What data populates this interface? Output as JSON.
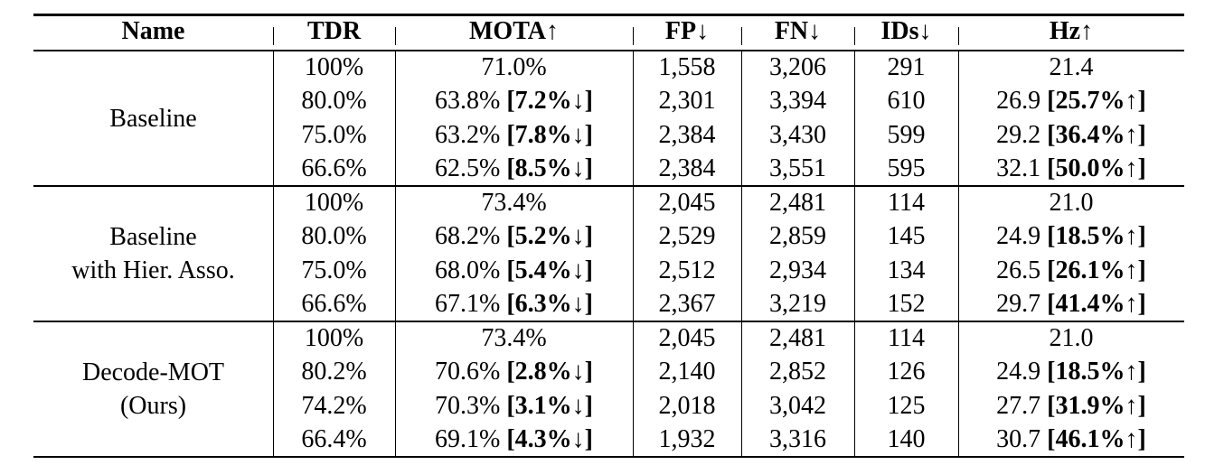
{
  "table": {
    "header": [
      "Name",
      "TDR",
      "MOTA↑",
      "FP↓",
      "FN↓",
      "IDs↓",
      "Hz↑"
    ],
    "groups": [
      {
        "name": [
          "Baseline"
        ],
        "rows": [
          [
            "100%",
            {
              "text": "71.0%"
            },
            "1,558",
            "3,206",
            "291",
            {
              "text": "21.4"
            }
          ],
          [
            "80.0%",
            {
              "text": "63.8%",
              "delta": "[7.2%↓]"
            },
            "2,301",
            "3,394",
            "610",
            {
              "text": "26.9",
              "delta": "[25.7%↑]"
            }
          ],
          [
            "75.0%",
            {
              "text": "63.2%",
              "delta": "[7.8%↓]"
            },
            "2,384",
            "3,430",
            "599",
            {
              "text": "29.2",
              "delta": "[36.4%↑]"
            }
          ],
          [
            "66.6%",
            {
              "text": "62.5%",
              "delta": "[8.5%↓]"
            },
            "2,384",
            "3,551",
            "595",
            {
              "text": "32.1",
              "delta": "[50.0%↑]"
            }
          ]
        ]
      },
      {
        "name": [
          "Baseline",
          "with Hier. Asso."
        ],
        "rows": [
          [
            "100%",
            {
              "text": "73.4%"
            },
            "2,045",
            "2,481",
            "114",
            {
              "text": "21.0"
            }
          ],
          [
            "80.0%",
            {
              "text": "68.2%",
              "delta": "[5.2%↓]"
            },
            "2,529",
            "2,859",
            "145",
            {
              "text": "24.9",
              "delta": "[18.5%↑]"
            }
          ],
          [
            "75.0%",
            {
              "text": "68.0%",
              "delta": "[5.4%↓]"
            },
            "2,512",
            "2,934",
            "134",
            {
              "text": "26.5",
              "delta": "[26.1%↑]"
            }
          ],
          [
            "66.6%",
            {
              "text": "67.1%",
              "delta": "[6.3%↓]"
            },
            "2,367",
            "3,219",
            "152",
            {
              "text": "29.7",
              "delta": "[41.4%↑]"
            }
          ]
        ]
      },
      {
        "name": [
          "Decode-MOT",
          "(Ours)"
        ],
        "rows": [
          [
            "100%",
            {
              "text": "73.4%"
            },
            "2,045",
            "2,481",
            "114",
            {
              "text": "21.0"
            }
          ],
          [
            "80.2%",
            {
              "text": "70.6%",
              "delta": "[2.8%↓]"
            },
            "2,140",
            "2,852",
            "126",
            {
              "text": "24.9",
              "delta": "[18.5%↑]"
            }
          ],
          [
            "74.2%",
            {
              "text": "70.3%",
              "delta": "[3.1%↓]"
            },
            "2,018",
            "3,042",
            "125",
            {
              "text": "27.7",
              "delta": "[31.9%↑]"
            }
          ],
          [
            "66.4%",
            {
              "text": "69.1%",
              "delta": "[4.3%↓]"
            },
            "1,932",
            "3,316",
            "140",
            {
              "text": "30.7",
              "delta": "[46.1%↑]"
            }
          ]
        ]
      }
    ]
  }
}
